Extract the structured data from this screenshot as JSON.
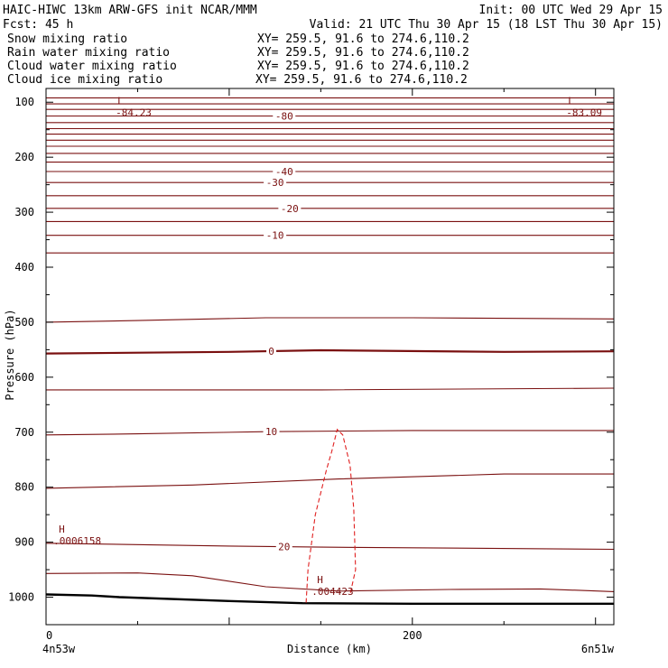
{
  "header": {
    "left_lines": [
      "HAIC-HIWC 13km ARW-GFS init   NCAR/MMM",
      "Fcst:   45 h"
    ],
    "right_lines": [
      "Init: 00 UTC Wed 29 Apr 15",
      "Valid: 21 UTC Thu 30 Apr 15 (18 LST Thu 30 Apr 15)"
    ],
    "fields": [
      {
        "name": "Snow mixing ratio",
        "xy": "XY= 259.5, 91.6 to 274.6,110.2",
        "color": "#000000"
      },
      {
        "name": "Rain water mixing ratio",
        "xy": "XY= 259.5, 91.6 to 274.6,110.2",
        "color": "#e02020"
      },
      {
        "name": "Cloud water mixing ratio",
        "xy": "XY= 259.5, 91.6 to 274.6,110.2",
        "color": "#1010c0"
      },
      {
        "name": "Cloud ice mixing ratio",
        "xy": "XY= 259.5, 91.6 to 274.6,110.2",
        "color": "#000000"
      }
    ]
  },
  "chart_data": {
    "type": "contour-cross-section",
    "xlabel": "Distance (km)",
    "ylabel": "Pressure (hPa)",
    "xlim": [
      0,
      310
    ],
    "ylim": [
      1050,
      75
    ],
    "x_ticks": [
      0,
      200
    ],
    "y_ticks": [
      100,
      200,
      300,
      400,
      500,
      600,
      700,
      800,
      900,
      1000
    ],
    "x_end_labels": {
      "left": "4n53w",
      "right": "6n51w"
    },
    "colors": {
      "temperature": "#7a1010",
      "terrain": "#000000",
      "rain": "#e02020",
      "cloud_water": "#1010c0"
    },
    "temperature_contours": [
      {
        "points": [
          [
            0,
            92
          ],
          [
            310,
            92
          ]
        ]
      },
      {
        "points": [
          [
            0,
            103
          ],
          [
            310,
            103
          ]
        ]
      },
      {
        "points": [
          [
            0,
            113
          ],
          [
            310,
            113
          ]
        ]
      },
      {
        "points": [
          [
            0,
            125
          ],
          [
            310,
            125
          ]
        ],
        "label": "-80",
        "label_x": 130
      },
      {
        "points": [
          [
            0,
            137
          ],
          [
            310,
            137
          ]
        ]
      },
      {
        "points": [
          [
            0,
            148
          ],
          [
            310,
            148
          ]
        ]
      },
      {
        "points": [
          [
            0,
            158
          ],
          [
            310,
            158
          ]
        ]
      },
      {
        "points": [
          [
            0,
            169
          ],
          [
            310,
            169
          ]
        ]
      },
      {
        "points": [
          [
            0,
            180
          ],
          [
            310,
            180
          ]
        ]
      },
      {
        "points": [
          [
            0,
            193
          ],
          [
            310,
            193
          ]
        ]
      },
      {
        "points": [
          [
            0,
            209
          ],
          [
            310,
            209
          ]
        ]
      },
      {
        "points": [
          [
            0,
            226
          ],
          [
            310,
            226
          ]
        ],
        "label": "-40",
        "label_x": 130
      },
      {
        "points": [
          [
            0,
            246
          ],
          [
            310,
            246
          ]
        ],
        "label": "-30",
        "label_x": 125
      },
      {
        "points": [
          [
            0,
            270
          ],
          [
            310,
            270
          ]
        ]
      },
      {
        "points": [
          [
            0,
            293
          ],
          [
            310,
            293
          ]
        ],
        "label": "-20",
        "label_x": 133
      },
      {
        "points": [
          [
            0,
            317
          ],
          [
            310,
            317
          ]
        ]
      },
      {
        "points": [
          [
            0,
            342
          ],
          [
            310,
            342
          ]
        ],
        "label": "-10",
        "label_x": 125
      },
      {
        "points": [
          [
            0,
            374
          ],
          [
            310,
            374
          ]
        ]
      },
      {
        "points": [
          [
            0,
            500
          ],
          [
            50,
            497
          ],
          [
            120,
            492
          ],
          [
            200,
            492
          ],
          [
            310,
            494
          ]
        ]
      },
      {
        "points": [
          [
            0,
            557
          ],
          [
            100,
            554
          ],
          [
            150,
            551
          ],
          [
            250,
            554
          ],
          [
            310,
            553
          ]
        ],
        "label": "0",
        "label_x": 123,
        "bold": true
      },
      {
        "points": [
          [
            0,
            623
          ],
          [
            150,
            623
          ],
          [
            310,
            620
          ]
        ]
      },
      {
        "points": [
          [
            0,
            705
          ],
          [
            50,
            703
          ],
          [
            120,
            699
          ],
          [
            200,
            697
          ],
          [
            310,
            697
          ]
        ],
        "label": "10",
        "label_x": 123
      },
      {
        "points": [
          [
            0,
            802
          ],
          [
            80,
            796
          ],
          [
            160,
            785
          ],
          [
            250,
            776
          ],
          [
            310,
            776
          ]
        ]
      },
      {
        "points": [
          [
            0,
            902
          ],
          [
            100,
            907
          ],
          [
            150,
            909
          ],
          [
            310,
            913
          ]
        ],
        "label": "20",
        "label_x": 130
      },
      {
        "points": [
          [
            0,
            957
          ],
          [
            50,
            956
          ],
          [
            80,
            961
          ],
          [
            120,
            981
          ],
          [
            160,
            989
          ],
          [
            220,
            986
          ],
          [
            270,
            985
          ],
          [
            310,
            990
          ]
        ]
      }
    ],
    "terrain": {
      "points": [
        [
          0,
          995
        ],
        [
          25,
          997
        ],
        [
          40,
          1000
        ],
        [
          100,
          1007
        ],
        [
          140,
          1011
        ],
        [
          200,
          1012
        ],
        [
          310,
          1012
        ]
      ]
    },
    "rain_contour": {
      "points": [
        [
          142,
          1010
        ],
        [
          143,
          950
        ],
        [
          147,
          850
        ],
        [
          153,
          770
        ],
        [
          156,
          735
        ],
        [
          159,
          695
        ],
        [
          162,
          705
        ],
        [
          166,
          760
        ],
        [
          168,
          840
        ],
        [
          169,
          950
        ],
        [
          166,
          995
        ]
      ]
    },
    "extrema": [
      {
        "type": "L",
        "value": "-84.23",
        "x": 38,
        "p": 97,
        "series": "temperature"
      },
      {
        "type": "L",
        "value": "-83.09",
        "x": 284,
        "p": 97,
        "series": "temperature"
      },
      {
        "type": "H",
        "value": ".0006158",
        "x": 4,
        "p": 876,
        "series": "cloud_water"
      },
      {
        "type": "H",
        "value": ".004423",
        "x": 145,
        "p": 968,
        "series": "rain"
      }
    ]
  }
}
